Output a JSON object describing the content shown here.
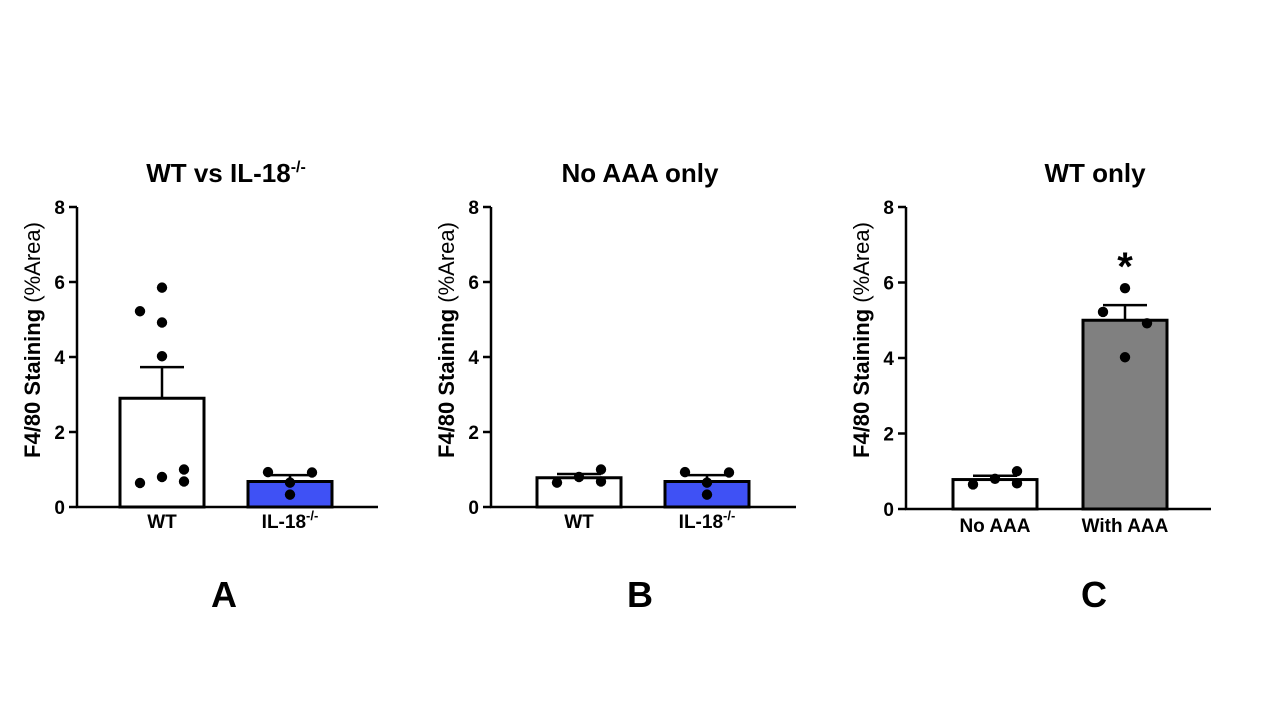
{
  "chart_data": [
    {
      "type": "bar",
      "panel_label": "A",
      "title": "WT vs IL-18",
      "title_sup": "-/-",
      "ylabel_main": "F4/80 Staining",
      "ylabel_paren": "(%Area)",
      "ylim": [
        0,
        8
      ],
      "yticks": [
        0,
        2,
        4,
        6,
        8
      ],
      "categories": [
        {
          "label": "WT",
          "sup": ""
        },
        {
          "label": "IL-18",
          "sup": "-/-"
        }
      ],
      "values": [
        2.9,
        0.68
      ],
      "sem": [
        0.83,
        0.17
      ],
      "colors": [
        "#ffffff",
        "#3f51f5"
      ],
      "points": [
        [
          5.85,
          5.22,
          4.92,
          4.02,
          0.64,
          0.8,
          1.0,
          0.68
        ],
        [
          0.93,
          0.92,
          0.65,
          0.33
        ]
      ],
      "significance": [
        "",
        ""
      ]
    },
    {
      "type": "bar",
      "panel_label": "B",
      "title": "No AAA only",
      "title_sup": "",
      "ylabel_main": "F4/80 Staining",
      "ylabel_paren": "(%Area)",
      "ylim": [
        0,
        8
      ],
      "yticks": [
        0,
        2,
        4,
        6,
        8
      ],
      "categories": [
        {
          "label": "WT",
          "sup": ""
        },
        {
          "label": "IL-18",
          "sup": "-/-"
        }
      ],
      "values": [
        0.78,
        0.68
      ],
      "sem": [
        0.1,
        0.17
      ],
      "colors": [
        "#ffffff",
        "#3f51f5"
      ],
      "points": [
        [
          0.65,
          0.8,
          1.0,
          0.68
        ],
        [
          0.93,
          0.92,
          0.65,
          0.33
        ]
      ],
      "significance": [
        "",
        ""
      ]
    },
    {
      "type": "bar",
      "panel_label": "C",
      "title": "WT only",
      "title_sup": "",
      "ylabel_main": "F4/80 Staining",
      "ylabel_paren": "(%Area)",
      "ylim": [
        0,
        8
      ],
      "yticks": [
        0,
        2,
        4,
        6,
        8
      ],
      "categories": [
        {
          "label": "No AAA",
          "sup": ""
        },
        {
          "label": "With AAA",
          "sup": ""
        }
      ],
      "values": [
        0.78,
        5.0
      ],
      "sem": [
        0.1,
        0.4
      ],
      "colors": [
        "#ffffff",
        "#808080"
      ],
      "points": [
        [
          0.65,
          0.8,
          1.0,
          0.68
        ],
        [
          5.85,
          5.22,
          4.92,
          4.02
        ]
      ],
      "significance": [
        "",
        "*"
      ]
    }
  ]
}
